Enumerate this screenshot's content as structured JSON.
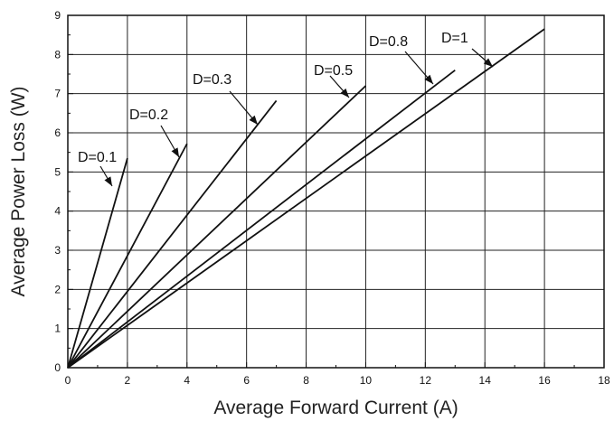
{
  "chart_data": {
    "type": "line",
    "xlabel": "Average Forward Current (A)",
    "ylabel": "Average Power Loss (W)",
    "xlim": [
      0,
      18
    ],
    "ylim": [
      0,
      9
    ],
    "xticks": [
      0,
      2,
      4,
      6,
      8,
      10,
      12,
      14,
      16,
      18
    ],
    "yticks": [
      0,
      1,
      2,
      3,
      4,
      5,
      6,
      7,
      8,
      9
    ],
    "grid": true,
    "series": [
      {
        "name": "D=0.1",
        "x": [
          0,
          2
        ],
        "y": [
          0,
          5.35
        ]
      },
      {
        "name": "D=0.2",
        "x": [
          0,
          4
        ],
        "y": [
          0,
          5.72
        ]
      },
      {
        "name": "D=0.3",
        "x": [
          0,
          7
        ],
        "y": [
          0,
          6.82
        ]
      },
      {
        "name": "D=0.5",
        "x": [
          0,
          10
        ],
        "y": [
          0,
          7.2
        ]
      },
      {
        "name": "D=0.8",
        "x": [
          0,
          13
        ],
        "y": [
          0,
          7.6
        ]
      },
      {
        "name": "D=1",
        "x": [
          0,
          16
        ],
        "y": [
          0,
          8.65
        ]
      }
    ]
  }
}
